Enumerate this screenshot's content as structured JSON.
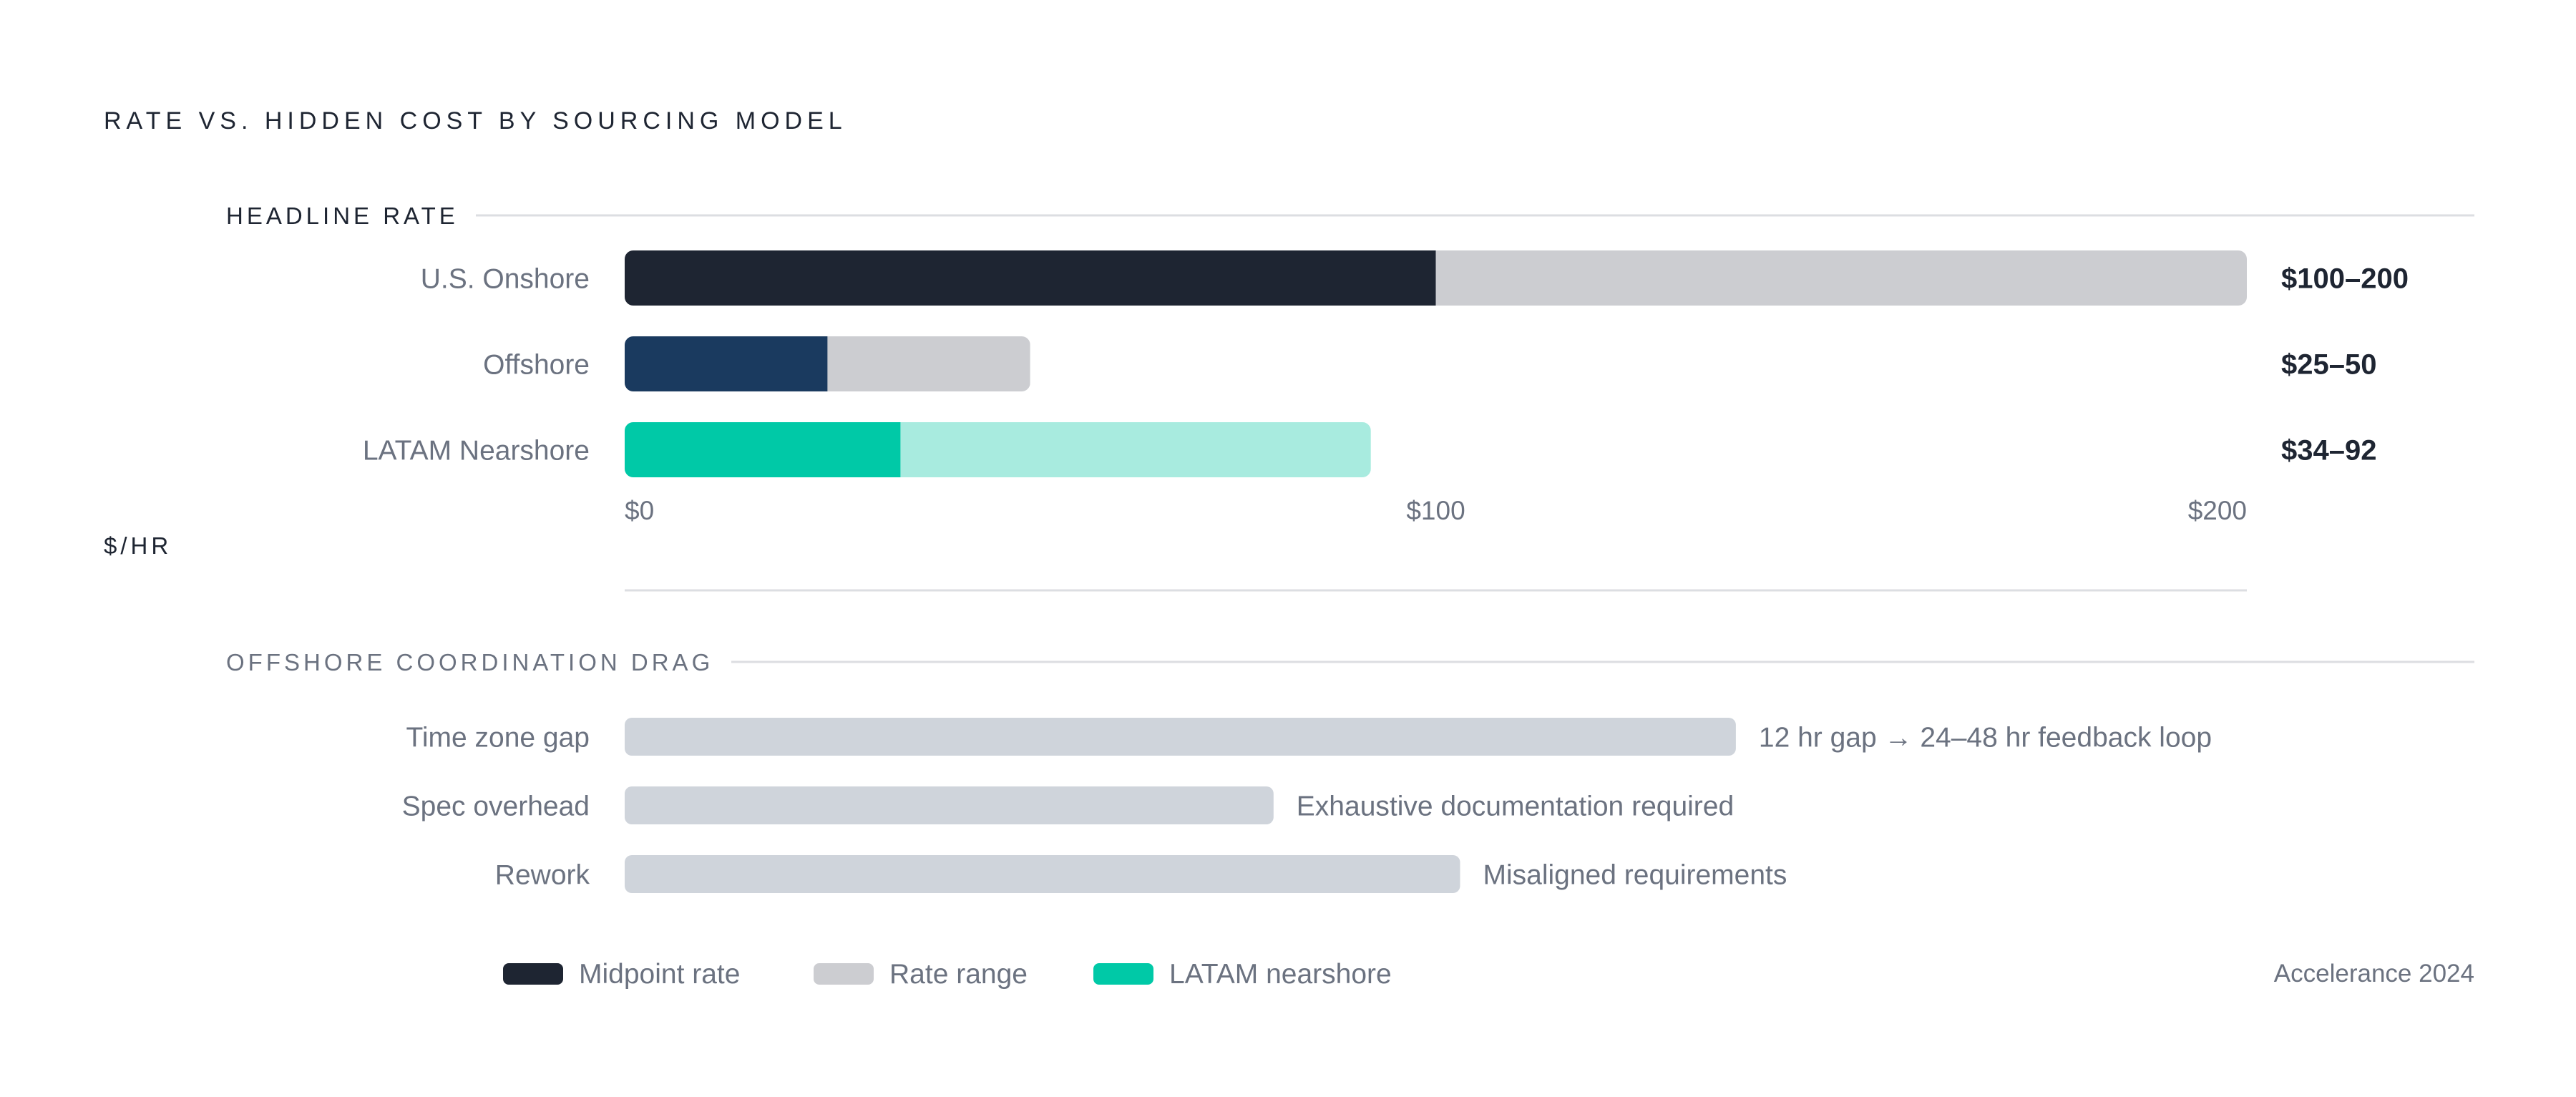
{
  "chart_data": {
    "type": "bar",
    "title": "RATE VS. HIDDEN COST BY SOURCING MODEL",
    "source": "Accelerance 2024",
    "rate_panel": {
      "title": "HEADLINE RATE",
      "unit_label": "$/HR",
      "xlim": [
        0,
        200
      ],
      "ticks": [
        {
          "value": 0,
          "label": "$0"
        },
        {
          "value": 100,
          "label": "$100"
        },
        {
          "value": 200,
          "label": "$200"
        }
      ],
      "rows": [
        {
          "label": "U.S. Onshore",
          "range_low": 0,
          "range_high": 200,
          "midpoint": 100,
          "value_label": "$100–200",
          "mid_color": "#1E2532",
          "range_color": "#CCCDD1"
        },
        {
          "label": "Offshore",
          "range_low": 0,
          "range_high": 50,
          "midpoint": 25,
          "value_label": "$25–50",
          "mid_color": "#1A3A5F",
          "range_color": "#CCCDD1"
        },
        {
          "label": "LATAM Nearshore",
          "range_low": 0,
          "range_high": 92,
          "midpoint": 34,
          "value_label": "$34–92",
          "mid_color": "#00C9A7",
          "range_color": "#A8EBDF"
        }
      ]
    },
    "drag_panel": {
      "title": "OFFSHORE COORDINATION DRAG",
      "bar_color": "#CFD4DB",
      "rows": [
        {
          "label": "Time zone gap",
          "value": 137,
          "note": "12 hr gap → 24–48 hr feedback loop"
        },
        {
          "label": "Spec overhead",
          "value": 80,
          "note": "Exhaustive documentation required"
        },
        {
          "label": "Rework",
          "value": 103,
          "note": "Misaligned requirements"
        }
      ]
    },
    "legend": {
      "placement": "bottom-left",
      "items": [
        {
          "label": "Midpoint rate",
          "color": "#1E2532"
        },
        {
          "label": "Rate range",
          "color": "#CCCDD1"
        },
        {
          "label": "LATAM nearshore",
          "color": "#00C9A7"
        }
      ]
    }
  }
}
